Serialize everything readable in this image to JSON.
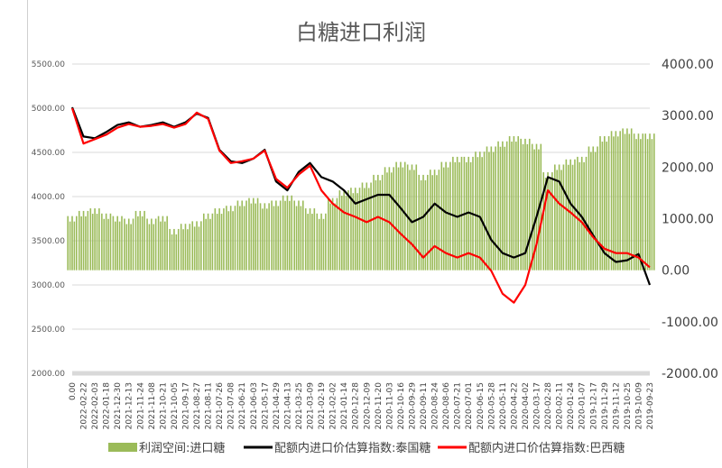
{
  "chart_data": {
    "type": "bar+line",
    "title": "白糖进口利润",
    "legend_position": "bottom",
    "grid": true,
    "left_axis": {
      "range": [
        2000,
        5500
      ],
      "ticks": [
        "2000.00",
        "2500.00",
        "3000.00",
        "3500.00",
        "4000.00",
        "4500.00",
        "5000.00",
        "5500.00"
      ]
    },
    "right_axis": {
      "range": [
        -2000,
        4000
      ],
      "ticks": [
        "-2000.00",
        "-1000.00",
        "0.00",
        "1000.00",
        "2000.00",
        "3000.00",
        "4000.00"
      ]
    },
    "categories": [
      "0.00",
      "2022-02-22",
      "2022-02-03",
      "2022-01-18",
      "2021-12-30",
      "2021-12-13",
      "2021-11-24",
      "2021-11-08",
      "2021-10-21",
      "2021-10-05",
      "2021-09-17",
      "2021-08-27",
      "2021-08-11",
      "2021-07-26",
      "2021-07-08",
      "2021-06-21",
      "2021-06-03",
      "2021-05-17",
      "2021-04-29",
      "2021-04-13",
      "2021-03-25",
      "2021-03-09",
      "2021-02-19",
      "2021-02-02",
      "2021-01-14",
      "2020-12-28",
      "2020-12-09",
      "2020-11-20",
      "2020-11-03",
      "2020-10-16",
      "2020-09-29",
      "2020-09-11",
      "2020-08-24",
      "2020-08-06",
      "2020-07-21",
      "2020-07-01",
      "2020-06-15",
      "2020-05-28",
      "2020-05-11",
      "2020-04-22",
      "2020-04-02",
      "2020-03-17",
      "2020-02-28",
      "2020-02-11",
      "2020-01-24",
      "2020-01-07",
      "2019-12-17",
      "2019-11-29",
      "2019-11-12",
      "2019-10-25",
      "2019-10-09",
      "2019-09-23"
    ],
    "series": [
      {
        "name": "利润空间:进口糖",
        "type": "bar",
        "axis": "right",
        "color": "#9bbb59",
        "values": [
          1050,
          1150,
          1200,
          1100,
          1050,
          1000,
          1150,
          1000,
          1050,
          800,
          900,
          950,
          1100,
          1200,
          1250,
          1350,
          1400,
          1300,
          1350,
          1450,
          1350,
          1200,
          1100,
          1400,
          1550,
          1600,
          1700,
          1850,
          2000,
          2100,
          2050,
          1850,
          1950,
          2100,
          2200,
          2200,
          2300,
          2400,
          2500,
          2600,
          2550,
          2450,
          1900,
          2050,
          2150,
          2200,
          2400,
          2600,
          2700,
          2750,
          2650,
          2650
        ]
      },
      {
        "name": "配额内进口价估算指数:泰国糖",
        "type": "line",
        "axis": "left",
        "color": "#000000",
        "values": [
          5010,
          4680,
          4660,
          4730,
          4810,
          4840,
          4790,
          4810,
          4840,
          4790,
          4840,
          4940,
          4890,
          4530,
          4400,
          4380,
          4430,
          4530,
          4170,
          4070,
          4280,
          4380,
          4220,
          4170,
          4070,
          3920,
          3970,
          4020,
          4020,
          3870,
          3710,
          3770,
          3920,
          3820,
          3770,
          3820,
          3770,
          3510,
          3360,
          3310,
          3360,
          3770,
          4220,
          4170,
          3920,
          3770,
          3560,
          3360,
          3260,
          3280,
          3350,
          3000
        ]
      },
      {
        "name": "配额内进口价估算指数:巴西糖",
        "type": "line",
        "axis": "left",
        "color": "#ff0000",
        "values": [
          5000,
          4600,
          4650,
          4700,
          4780,
          4820,
          4790,
          4800,
          4820,
          4780,
          4820,
          4950,
          4880,
          4520,
          4380,
          4400,
          4430,
          4520,
          4200,
          4100,
          4250,
          4350,
          4070,
          3920,
          3820,
          3770,
          3710,
          3770,
          3710,
          3580,
          3460,
          3310,
          3440,
          3360,
          3310,
          3360,
          3310,
          3160,
          2900,
          2800,
          3000,
          3460,
          4070,
          3920,
          3820,
          3710,
          3540,
          3410,
          3360,
          3360,
          3310,
          3200
        ]
      }
    ]
  }
}
